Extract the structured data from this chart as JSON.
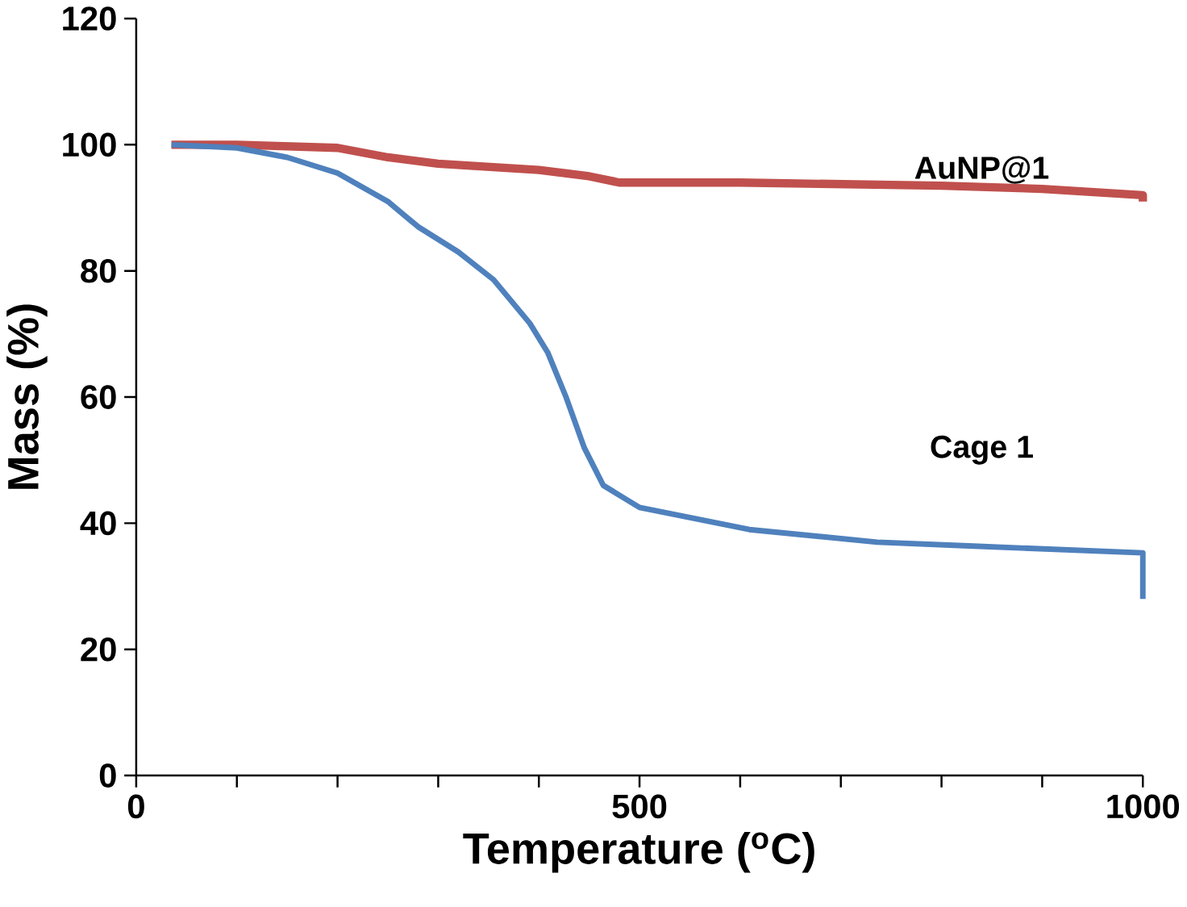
{
  "chart_data": {
    "type": "line",
    "xlabel": "Temperature ($^{o}$C)",
    "ylabel": "Mass (%)",
    "xlim": [
      0,
      1000
    ],
    "ylim": [
      0,
      120
    ],
    "xticks": [
      0,
      {
        "value": 100,
        "label": null
      },
      {
        "value": 200,
        "label": null
      },
      {
        "value": 300,
        "label": null
      },
      {
        "value": 400,
        "label": null
      },
      500,
      {
        "value": 600,
        "label": null
      },
      {
        "value": 700,
        "label": null
      },
      {
        "value": 800,
        "label": null
      },
      {
        "value": 900,
        "label": null
      },
      1000
    ],
    "yticks": [
      0,
      20,
      40,
      60,
      80,
      100,
      120
    ],
    "grid": false,
    "legend": false,
    "marker": "none",
    "line_style": "solid",
    "series": [
      {
        "name": "AuNP@1",
        "color": "#c0504d",
        "x": [
          35,
          100,
          200,
          250,
          300,
          400,
          450,
          480,
          600,
          800,
          900,
          1000,
          1000
        ],
        "values": [
          100,
          100,
          99.5,
          98,
          97,
          96,
          95,
          94,
          94,
          93.5,
          93,
          92,
          91
        ]
      },
      {
        "name": "Cage 1",
        "color": "#4f81bd",
        "x": [
          35,
          100,
          150,
          200,
          250,
          280,
          320,
          355,
          391,
          409,
          427,
          445,
          464,
          500,
          609,
          736,
          827,
          1000,
          1000
        ],
        "values": [
          100,
          99.5,
          98,
          95.5,
          91,
          87,
          83,
          78.6,
          71.7,
          67,
          60,
          52,
          46,
          42.5,
          39,
          37,
          36.4,
          35.3,
          28
        ]
      }
    ]
  }
}
